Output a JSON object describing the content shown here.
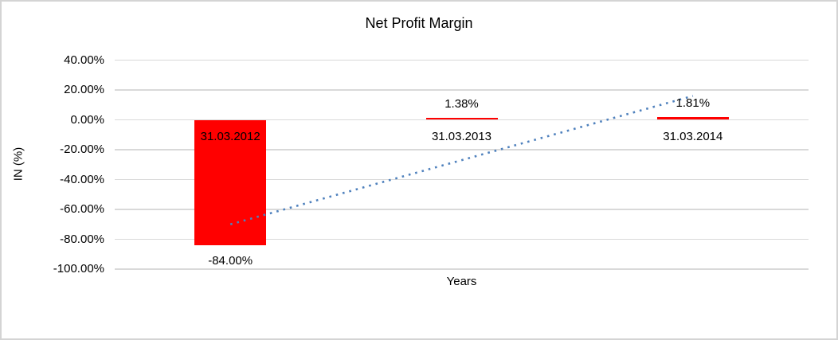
{
  "chart_data": {
    "type": "bar",
    "title": "Net Profit Margin",
    "xlabel": "Years",
    "ylabel": "IN (%)",
    "categories": [
      "31.03.2012",
      "31.03.2013",
      "31.03.2014"
    ],
    "values": [
      -84.0,
      1.38,
      1.81
    ],
    "data_labels": [
      "-84.00%",
      "1.38%",
      "1.81%"
    ],
    "series_name": "Net Profit Margin",
    "bar_color": "#FF0000",
    "ylim": [
      -100,
      40
    ],
    "ytick_labels": [
      "40.00%",
      "20.00%",
      "0.00%",
      "-20.00%",
      "-40.00%",
      "-60.00%",
      "-80.00%",
      "-100.00%"
    ],
    "ytick_values": [
      40,
      20,
      0,
      -20,
      -40,
      -60,
      -80,
      -100
    ],
    "grid": true,
    "gridline_color": "#D9D9D9",
    "legend": "none",
    "text_color": "#000000",
    "trendline": {
      "type": "linear",
      "style": "dotted",
      "color": "#4F81BD",
      "start_value_pct": -70,
      "end_value_pct": 16
    }
  }
}
